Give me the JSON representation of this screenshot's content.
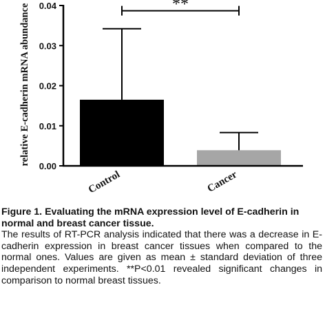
{
  "chart_data": {
    "type": "bar",
    "title": "",
    "xlabel": "",
    "ylabel": "relative E-cadherin mRNA abundance",
    "categories": [
      "Control",
      "Cancer"
    ],
    "values": [
      0.0165,
      0.0039
    ],
    "error_upper": [
      0.0342,
      0.0083
    ],
    "bar_colors": [
      "#000000",
      "#a6a6a6"
    ],
    "ylim": [
      0,
      0.04
    ],
    "yticks": [
      "0.00",
      "0.01",
      "0.02",
      "0.03",
      "0.04"
    ],
    "ytick_values": [
      0,
      0.01,
      0.02,
      0.03,
      0.04
    ],
    "grid": false,
    "significance": {
      "between": [
        "Control",
        "Cancer"
      ],
      "label": "**",
      "level": 0.0387
    }
  },
  "caption": {
    "title": "Figure 1. Evaluating the mRNA expression level of E-cadherin in normal and breast cancer tissue.",
    "body": "The results of RT-PCR analysis indicated that there was a decrease in E-cadherin expression in breast cancer tissues when compared to the normal ones. Values are given as mean ± standard deviation of three independent experiments. **P<0.01 revealed significant changes in comparison to normal breast tissues."
  }
}
